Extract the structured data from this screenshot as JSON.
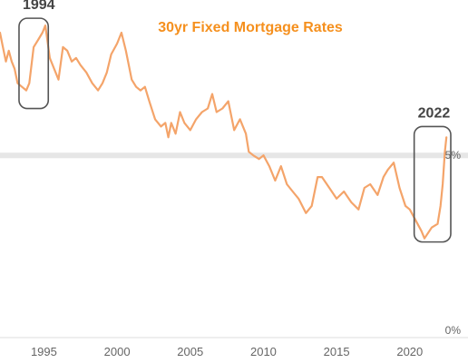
{
  "chart_data": {
    "type": "line",
    "title": "30yr Fixed Mortgage Rates",
    "xlabel": "",
    "ylabel": "",
    "xlim": [
      1992.0,
      2022.8
    ],
    "ylim": [
      0,
      8.3
    ],
    "x_ticks": [
      {
        "value": 1995,
        "label": "1995"
      },
      {
        "value": 2000,
        "label": "2000"
      },
      {
        "value": 2005,
        "label": "2005"
      },
      {
        "value": 2010,
        "label": "2010"
      },
      {
        "value": 2015,
        "label": "2015"
      },
      {
        "value": 2020,
        "label": "2020"
      }
    ],
    "y_ticks": [
      {
        "value": 5,
        "label": "5%"
      },
      {
        "value": 0,
        "label": "0%"
      }
    ],
    "grid": "y",
    "legend": "none",
    "series": [
      {
        "color": "#f4a46a",
        "x": [
          1992.0,
          1992.2,
          1992.4,
          1992.6,
          1992.8,
          1993.0,
          1993.2,
          1993.5,
          1993.8,
          1994.0,
          1994.3,
          1994.6,
          1994.9,
          1995.1,
          1995.4,
          1995.7,
          1996.0,
          1996.3,
          1996.6,
          1996.9,
          1997.2,
          1997.5,
          1997.9,
          1998.3,
          1998.7,
          1999.0,
          1999.3,
          1999.6,
          2000.0,
          2000.3,
          2000.6,
          2001.0,
          2001.3,
          2001.6,
          2001.9,
          2002.2,
          2002.6,
          2003.0,
          2003.3,
          2003.5,
          2003.7,
          2004.0,
          2004.3,
          2004.6,
          2005.0,
          2005.4,
          2005.8,
          2006.2,
          2006.5,
          2006.8,
          2007.2,
          2007.6,
          2008.0,
          2008.4,
          2008.8,
          2009.0,
          2009.3,
          2009.7,
          2010.0,
          2010.4,
          2010.8,
          2011.2,
          2011.6,
          2012.0,
          2012.4,
          2012.9,
          2013.3,
          2013.7,
          2014.0,
          2014.5,
          2015.0,
          2015.5,
          2016.0,
          2016.5,
          2016.9,
          2017.3,
          2017.8,
          2018.2,
          2018.5,
          2018.9,
          2019.3,
          2019.7,
          2020.0,
          2020.4,
          2020.8,
          2021.0,
          2021.5,
          2021.9,
          2022.1,
          2022.25,
          2022.4,
          2022.5
        ],
        "values": [
          8.4,
          8.0,
          7.6,
          7.9,
          7.6,
          7.4,
          7.0,
          6.9,
          6.8,
          7.0,
          8.0,
          8.2,
          8.4,
          8.6,
          7.7,
          7.4,
          7.1,
          8.0,
          7.9,
          7.6,
          7.7,
          7.5,
          7.3,
          7.0,
          6.8,
          7.0,
          7.3,
          7.8,
          8.1,
          8.4,
          7.9,
          7.1,
          6.9,
          6.8,
          6.9,
          6.5,
          6.0,
          5.8,
          5.9,
          5.5,
          5.9,
          5.6,
          6.2,
          5.9,
          5.7,
          6.0,
          6.2,
          6.3,
          6.7,
          6.2,
          6.3,
          6.5,
          5.7,
          6.0,
          5.6,
          5.1,
          5.0,
          4.9,
          5.0,
          4.7,
          4.3,
          4.7,
          4.2,
          4.0,
          3.8,
          3.4,
          3.6,
          4.4,
          4.4,
          4.1,
          3.8,
          4.0,
          3.7,
          3.5,
          4.1,
          4.2,
          3.9,
          4.4,
          4.6,
          4.8,
          4.1,
          3.6,
          3.5,
          3.2,
          2.9,
          2.7,
          3.0,
          3.1,
          3.6,
          4.2,
          5.1,
          5.5
        ]
      }
    ],
    "annotations": [
      {
        "label": "1994",
        "x_range": [
          1993.3,
          1995.3
        ],
        "y_range": [
          6.3,
          8.8
        ]
      },
      {
        "label": "2022",
        "x_range": [
          2020.3,
          2022.8
        ],
        "y_range": [
          2.6,
          5.8
        ]
      }
    ]
  }
}
